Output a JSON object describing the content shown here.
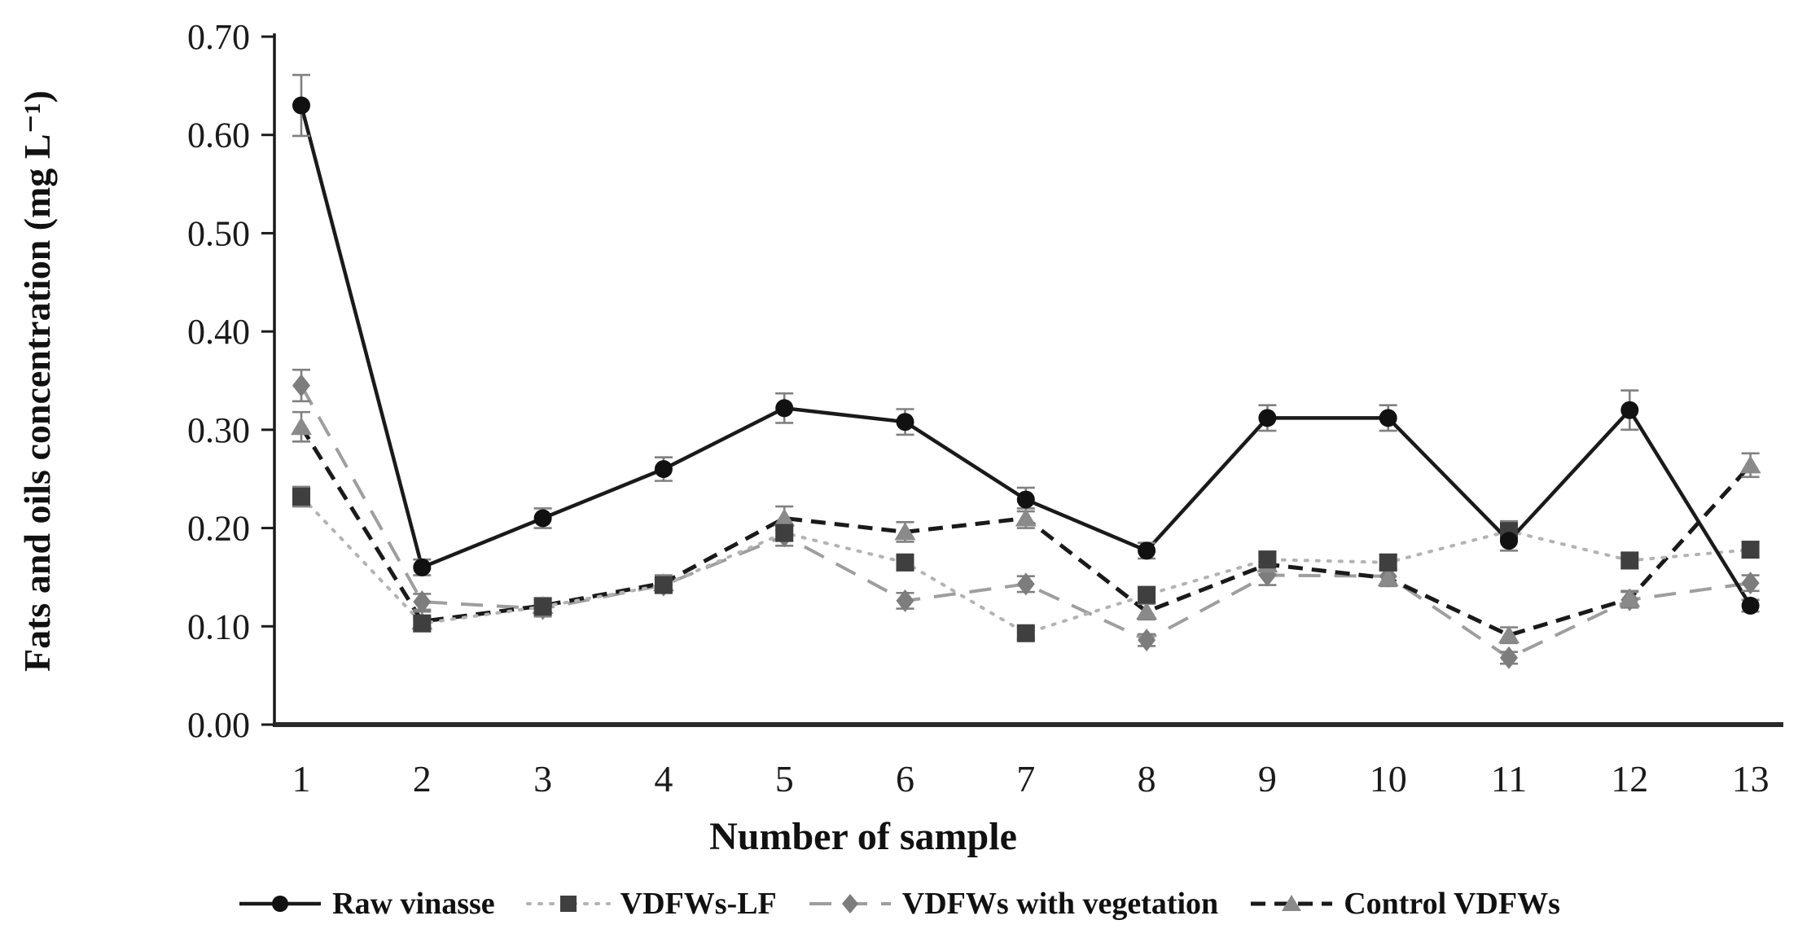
{
  "figure": {
    "y_axis_title": "Fats and oils concentration (mg L⁻¹)",
    "x_axis_title": "Number of sample"
  },
  "chart_data": {
    "type": "line",
    "title": "",
    "xlabel": "Number of sample",
    "ylabel": "Fats and oils concentration (mg L⁻¹)",
    "x": [
      1,
      2,
      3,
      4,
      5,
      6,
      7,
      8,
      9,
      10,
      11,
      12,
      13
    ],
    "ylim": [
      0.0,
      0.7
    ],
    "y_ticks": [
      "0.00",
      "0.10",
      "0.20",
      "0.30",
      "0.40",
      "0.50",
      "0.60",
      "0.70"
    ],
    "grid": false,
    "legend_position": "bottom",
    "error_bar_color": "#808080",
    "axis_color": "#2a2a2a",
    "series": [
      {
        "name": "VDFWs with vegetation",
        "marker": "diamond",
        "line": "dashed",
        "color": "#9e9e9e",
        "marker_color": "#7d7d7d",
        "values": [
          0.345,
          0.125,
          0.118,
          0.142,
          0.192,
          0.126,
          0.143,
          0.086,
          0.152,
          0.151,
          0.068,
          0.127,
          0.144
        ],
        "errors": [
          0.016,
          0.008,
          0.008,
          0.006,
          0.01,
          0.008,
          0.008,
          0.006,
          0.01,
          0.008,
          0.006,
          0.008,
          0.008
        ]
      },
      {
        "name": "Control VDFWs",
        "marker": "triangle",
        "line": "dashed-dark",
        "color": "#1a1a1a",
        "marker_color": "#8a8a8a",
        "values": [
          0.303,
          0.105,
          0.121,
          0.144,
          0.21,
          0.196,
          0.21,
          0.115,
          0.163,
          0.149,
          0.091,
          0.128,
          0.264
        ],
        "errors": [
          0.015,
          0.01,
          0.008,
          0.008,
          0.012,
          0.01,
          0.01,
          0.008,
          0.01,
          0.008,
          0.008,
          0.008,
          0.012
        ]
      },
      {
        "name": "VDFWs-LF",
        "marker": "square",
        "line": "dotted",
        "color": "#b3b3b3",
        "marker_color": "#3f3f3f",
        "values": [
          0.232,
          0.103,
          0.12,
          0.142,
          0.195,
          0.165,
          0.093,
          0.132,
          0.168,
          0.165,
          0.197,
          0.167,
          0.178
        ],
        "errors": [
          0.01,
          0.006,
          0.008,
          0.006,
          0.008,
          0.008,
          0.006,
          0.008,
          0.008,
          0.008,
          0.01,
          0.008,
          0.008
        ]
      },
      {
        "name": "Raw vinasse",
        "marker": "circle",
        "line": "solid",
        "color": "#1a1a1a",
        "marker_color": "#111111",
        "values": [
          0.63,
          0.16,
          0.21,
          0.26,
          0.322,
          0.308,
          0.229,
          0.177,
          0.312,
          0.312,
          0.187,
          0.32,
          0.121
        ],
        "errors": [
          0.031,
          0.008,
          0.01,
          0.012,
          0.015,
          0.013,
          0.012,
          0.008,
          0.013,
          0.013,
          0.01,
          0.02,
          0.006
        ]
      }
    ],
    "legend_order": [
      "Raw vinasse",
      "VDFWs-LF",
      "VDFWs with vegetation",
      "Control VDFWs"
    ]
  }
}
